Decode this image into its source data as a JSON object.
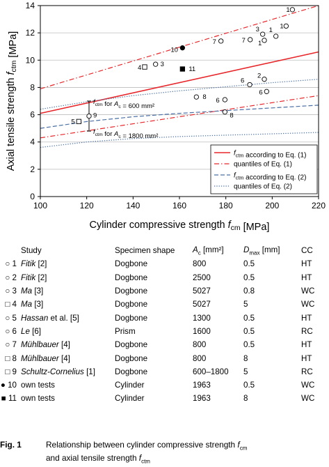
{
  "chart_data": {
    "type": "scatter",
    "xlabel": "Cylinder compressive strength f_cm [MPa]",
    "ylabel": "Axial tensile strength f_ctm [MPa]",
    "xlim": [
      100,
      220
    ],
    "ylim": [
      0,
      14
    ],
    "xticks": [
      "100",
      "120",
      "140",
      "160",
      "180",
      "200",
      "220"
    ],
    "yticks": [
      "0",
      "2",
      "4",
      "6",
      "8",
      "10",
      "12",
      "14"
    ],
    "grid": "horizontal",
    "legend_position": "bottom-right",
    "legend": [
      {
        "label": "f_ctm according to Eq. (1)",
        "color": "#e8262a",
        "style": "solid"
      },
      {
        "label": "quantiles of Eq. (1)",
        "color": "#e8262a",
        "style": "dashdot"
      },
      {
        "label": "f_ctm according to Eq. (2)",
        "color": "#4a6fa5",
        "style": "dashed"
      },
      {
        "label": "quantiles of Eq. (2)",
        "color": "#4a6fa5",
        "style": "dotted"
      }
    ],
    "lines": [
      {
        "name": "eq1_mean",
        "style": "solid",
        "color": "#e8262a",
        "points": [
          [
            100,
            6.1
          ],
          [
            220,
            10.6
          ]
        ]
      },
      {
        "name": "eq1_upper",
        "style": "dashdot",
        "color": "#e8262a",
        "points": [
          [
            100,
            7.9
          ],
          [
            220,
            14.0
          ]
        ]
      },
      {
        "name": "eq1_lower",
        "style": "dashdot",
        "color": "#e8262a",
        "points": [
          [
            100,
            4.3
          ],
          [
            220,
            7.4
          ]
        ]
      },
      {
        "name": "eq2_mean",
        "style": "dashed",
        "color": "#4a6fa5",
        "points": [
          [
            100,
            5.0
          ],
          [
            120,
            5.5
          ],
          [
            140,
            5.85
          ],
          [
            160,
            6.1
          ],
          [
            180,
            6.3
          ],
          [
            200,
            6.5
          ],
          [
            220,
            6.7
          ]
        ]
      },
      {
        "name": "eq2_upper",
        "style": "dotted",
        "color": "#4a6fa5",
        "points": [
          [
            100,
            6.4
          ],
          [
            120,
            6.95
          ],
          [
            140,
            7.4
          ],
          [
            160,
            7.75
          ],
          [
            180,
            8.05
          ],
          [
            200,
            8.35
          ],
          [
            220,
            8.6
          ]
        ]
      },
      {
        "name": "eq2_lower",
        "style": "dotted",
        "color": "#4a6fa5",
        "points": [
          [
            100,
            3.6
          ],
          [
            120,
            4.0
          ],
          [
            140,
            4.25
          ],
          [
            160,
            4.4
          ],
          [
            180,
            4.5
          ],
          [
            200,
            4.6
          ],
          [
            220,
            4.7
          ]
        ]
      }
    ],
    "points": [
      {
        "x": 208.7,
        "y": 13.7,
        "marker": "circle-open",
        "label": "1"
      },
      {
        "x": 206.0,
        "y": 12.5,
        "marker": "circle-open",
        "label": "1"
      },
      {
        "x": 201.6,
        "y": 11.75,
        "marker": "circle-open",
        "label": "1"
      },
      {
        "x": 195.9,
        "y": 11.9,
        "marker": "circle-open",
        "label": "3"
      },
      {
        "x": 196.6,
        "y": 11.45,
        "marker": "circle-open",
        "label": "1"
      },
      {
        "x": 190.5,
        "y": 11.5,
        "marker": "circle-open",
        "label": "7"
      },
      {
        "x": 177.9,
        "y": 11.4,
        "marker": "circle-open",
        "label": "7"
      },
      {
        "x": 161.3,
        "y": 10.9,
        "marker": "circle-filled",
        "label": "10"
      },
      {
        "x": 161.3,
        "y": 9.35,
        "marker": "square-filled",
        "label": "11"
      },
      {
        "x": 145.0,
        "y": 9.5,
        "marker": "square-open",
        "label": "4"
      },
      {
        "x": 149.7,
        "y": 9.7,
        "marker": "circle-open",
        "label": "3"
      },
      {
        "x": 196.6,
        "y": 8.6,
        "marker": "circle-open",
        "label": "2"
      },
      {
        "x": 190.3,
        "y": 8.2,
        "marker": "circle-open",
        "label": "6"
      },
      {
        "x": 197.6,
        "y": 7.7,
        "marker": "circle-open",
        "label": "6"
      },
      {
        "x": 167.3,
        "y": 7.3,
        "marker": "circle-open",
        "label": "8"
      },
      {
        "x": 179.6,
        "y": 7.1,
        "marker": "circle-open",
        "label": "6"
      },
      {
        "x": 179.6,
        "y": 6.2,
        "marker": "circle-open",
        "label": "8"
      },
      {
        "x": 116.6,
        "y": 5.5,
        "marker": "square-open",
        "label": "5"
      },
      {
        "x": 121.0,
        "y": 5.9,
        "marker": "circle-open",
        "label": "9"
      }
    ],
    "annotations": [
      {
        "text": "f_ctm for A_c = 600 mm²",
        "x": 121,
        "y": 7.0
      },
      {
        "text": "f_ctm for A_c = 1800 mm²",
        "x": 121,
        "y": 4.8
      }
    ]
  },
  "table": {
    "headers": {
      "study": "Study",
      "shape": "Specimen shape",
      "ac": "A_c [mm²]",
      "dmax": "D_max [mm]",
      "cc": "CC"
    },
    "rows": [
      {
        "sym": "○",
        "no": "1",
        "study": "Fitik",
        "ref": "[2]",
        "shape": "Dogbone",
        "ac": "800",
        "dmax": "0.5",
        "cc": "HT"
      },
      {
        "sym": "○",
        "no": "2",
        "study": "Fitik",
        "ref": "[2]",
        "shape": "Dogbone",
        "ac": "2500",
        "dmax": "0.5",
        "cc": "HT"
      },
      {
        "sym": "○",
        "no": "3",
        "study": "Ma",
        "ref": "[3]",
        "shape": "Dogbone",
        "ac": "5027",
        "dmax": "0.8",
        "cc": "WC"
      },
      {
        "sym": "□",
        "no": "4",
        "study": "Ma",
        "ref": "[3]",
        "shape": "Dogbone",
        "ac": "5027",
        "dmax": "5",
        "cc": "WC"
      },
      {
        "sym": "○",
        "no": "5",
        "study": "Hassan",
        "ref": "et al. [5]",
        "shape": "Dogbone",
        "ac": "1300",
        "dmax": "0.5",
        "cc": "HT"
      },
      {
        "sym": "○",
        "no": "6",
        "study": "Le",
        "ref": "[6]",
        "shape": "Prism",
        "ac": "1600",
        "dmax": "0.5",
        "cc": "RC"
      },
      {
        "sym": "○",
        "no": "7",
        "study": "Mühlbauer",
        "ref": "[4]",
        "shape": "Dogbone",
        "ac": "800",
        "dmax": "0.5",
        "cc": "HT"
      },
      {
        "sym": "□",
        "no": "8",
        "study": "Mühlbauer",
        "ref": "[4]",
        "shape": "Dogbone",
        "ac": "800",
        "dmax": "8",
        "cc": "HT"
      },
      {
        "sym": "□",
        "no": "9",
        "study": "Schultz-Cornelius",
        "ref": "[1]",
        "shape": "Dogbone",
        "ac": "600–1800",
        "dmax": "5",
        "cc": "RC"
      },
      {
        "sym": "●",
        "no": "10",
        "study": "own tests",
        "ref": "",
        "shape": "Cylinder",
        "ac": "1963",
        "dmax": "0.5",
        "cc": "WC"
      },
      {
        "sym": "■",
        "no": "11",
        "study": "own tests",
        "ref": "",
        "shape": "Cylinder",
        "ac": "1963",
        "dmax": "8",
        "cc": "WC"
      }
    ]
  },
  "caption": {
    "fig": "Fig. 1",
    "line1": "Relationship between cylinder compressive strength f_cm",
    "line2": "and axial tensile strength f_ctm"
  }
}
